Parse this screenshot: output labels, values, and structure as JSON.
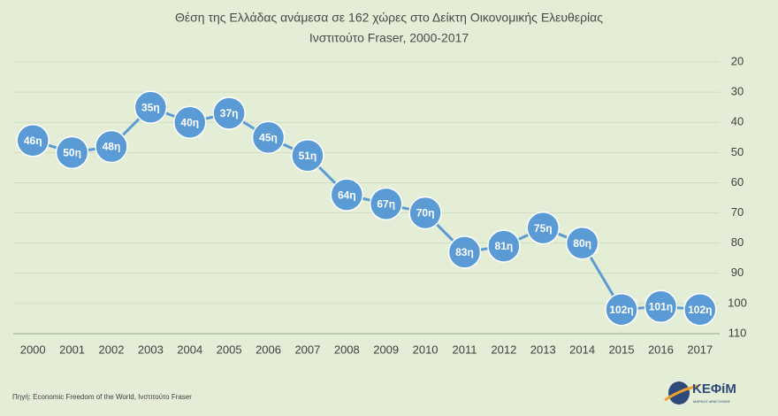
{
  "chart_data": {
    "type": "line",
    "title": "Θέση της Ελλάδας ανάμεσα σε 162 χώρες στο Δείκτη Οικονομικής Ελευθερίας",
    "subtitle": "Ινστιτούτο Fraser, 2000-2017",
    "x": [
      2000,
      2001,
      2002,
      2003,
      2004,
      2005,
      2006,
      2007,
      2008,
      2009,
      2010,
      2011,
      2012,
      2013,
      2014,
      2015,
      2016,
      2017
    ],
    "xlim": [
      1999.5,
      2017.5
    ],
    "series": [
      {
        "color": "#5b9bd5",
        "values": [
          46,
          50,
          48,
          35,
          40,
          37,
          45,
          51,
          64,
          67,
          70,
          83,
          81,
          75,
          80,
          102,
          101,
          102
        ],
        "value_labels": [
          "46η",
          "50η",
          "48η",
          "35η",
          "40η",
          "37η",
          "45η",
          "51η",
          "64η",
          "67η",
          "70η",
          "83η",
          "81η",
          "75η",
          "80η",
          "102η",
          "101η",
          "102η"
        ]
      }
    ],
    "ylim": [
      20,
      110
    ],
    "y_inverted": true,
    "y_axis_side": "right",
    "yticks": [
      20,
      30,
      40,
      50,
      60,
      70,
      80,
      90,
      100,
      110
    ],
    "grid": true,
    "source": "Πηγή: Economic Freedom of the World, Ινστιτούτο Fraser",
    "logo": "ΚΕΦίΜ",
    "logo_subtitle": "ΜΑΡΚΟΣ ΔΡΑΓΟΥΜΗΣ"
  }
}
